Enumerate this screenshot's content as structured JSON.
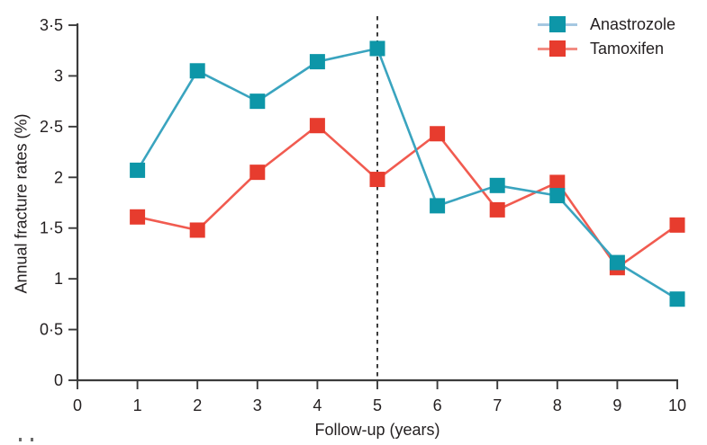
{
  "chart_data": {
    "type": "line",
    "title": "",
    "xlabel": "Follow-up (years)",
    "ylabel": "Annual fracture rates (%)",
    "xlim": [
      0,
      10
    ],
    "ylim": [
      0,
      3.5
    ],
    "grid": false,
    "legend_position": "top-right",
    "x": [
      1,
      2,
      3,
      4,
      5,
      6,
      7,
      8,
      9,
      10
    ],
    "x_tick_values": [
      0,
      1,
      2,
      3,
      4,
      5,
      6,
      7,
      8,
      9,
      10
    ],
    "x_tick_labels": [
      "0",
      "1",
      "2",
      "3",
      "4",
      "5",
      "6",
      "7",
      "8",
      "9",
      "10"
    ],
    "y_tick_values": [
      0,
      0.5,
      1,
      1.5,
      2,
      2.5,
      3,
      3.5
    ],
    "y_tick_labels": [
      "0",
      "0·5",
      "1",
      "1·5",
      "2",
      "2·5",
      "3",
      "3·5"
    ],
    "dashed_line_x": 5,
    "series": [
      {
        "name": "Anastrozole",
        "marker": "square",
        "marker_color": "#0d96a8",
        "line_color": "#3aa4bf",
        "legend_line_color": "#a5c8e1",
        "values": [
          2.07,
          3.05,
          2.75,
          3.14,
          3.27,
          1.72,
          1.92,
          1.82,
          1.16,
          0.8
        ]
      },
      {
        "name": "Tamoxifen",
        "marker": "square",
        "marker_color": "#e73c2e",
        "line_color": "#f15b50",
        "legend_line_color": "#f28c82",
        "values": [
          1.61,
          1.48,
          2.05,
          2.51,
          1.98,
          2.43,
          1.68,
          1.95,
          1.11,
          1.53
        ]
      }
    ],
    "colors": {
      "axis": "#3b3b3b",
      "dashed_line": "#1a1a1a",
      "text": "#231f20"
    }
  }
}
